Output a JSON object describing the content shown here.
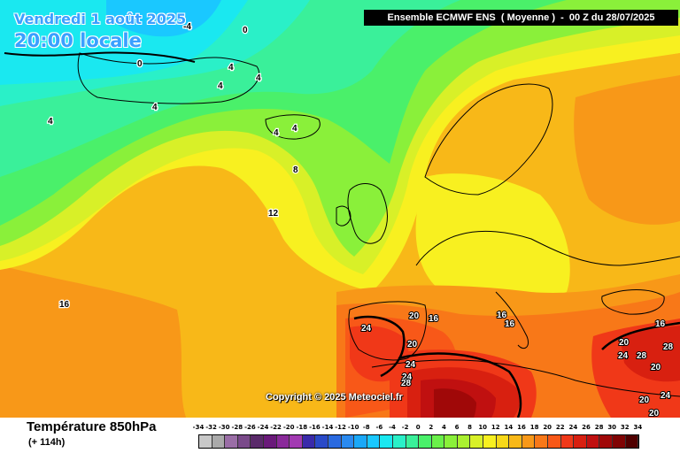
{
  "header": {
    "run_title": "Ensemble ECMWF ENS  ( Moyenne )  -  00 Z du 28/07/2025",
    "date_text": "Vendredi 1 août 2025",
    "time_text": "20:00 locale"
  },
  "copyright": "Copyright © 2025 Meteociel.fr",
  "footer": {
    "parameter": "Température 850hPa",
    "lead_time": "(+ 114h)"
  },
  "legend": {
    "ticks": [
      "-34",
      "-32",
      "-30",
      "-28",
      "-26",
      "-24",
      "-22",
      "-20",
      "-18",
      "-16",
      "-14",
      "-12",
      "-10",
      "-8",
      "-6",
      "-4",
      "-2",
      "0",
      "2",
      "4",
      "6",
      "8",
      "10",
      "12",
      "14",
      "16",
      "18",
      "20",
      "22",
      "24",
      "26",
      "28",
      "30",
      "32",
      "34"
    ],
    "colors": [
      "#c8c8c8",
      "#aaaaaa",
      "#9a6ea6",
      "#7a4a8a",
      "#5a2a6a",
      "#6a1a7a",
      "#8a2a9a",
      "#a23ab2",
      "#3a2aaa",
      "#2a4ac8",
      "#2a6ae0",
      "#2a8af0",
      "#1aa8f8",
      "#1ac8ff",
      "#1ae8f0",
      "#2af0c8",
      "#3af09a",
      "#4af06a",
      "#6af04a",
      "#8af03a",
      "#aaf030",
      "#d8f028",
      "#f8f020",
      "#f8d818",
      "#f8b818",
      "#f89818",
      "#f87818",
      "#f85818",
      "#f03818",
      "#d82010",
      "#c01010",
      "#a00808",
      "#800404",
      "#500000"
    ]
  },
  "map_labels": {
    "l1": "-4",
    "l2": "0",
    "l3": "0",
    "l4": "4",
    "l5": "4",
    "l6": "4",
    "l7": "4",
    "l8": "4",
    "l9": "4",
    "l10": "4",
    "l11": "8",
    "l12": "12",
    "l13": "16",
    "l14": "20",
    "l15": "16",
    "l16": "16",
    "l17": "16",
    "l18": "24",
    "l19": "20",
    "l20": "24",
    "l21": "24",
    "l22": "28",
    "l23": "16",
    "l24": "20",
    "l25": "24",
    "l26": "28",
    "l27": "28",
    "l28": "20",
    "l29": "24",
    "l30": "20",
    "l31": "20"
  }
}
